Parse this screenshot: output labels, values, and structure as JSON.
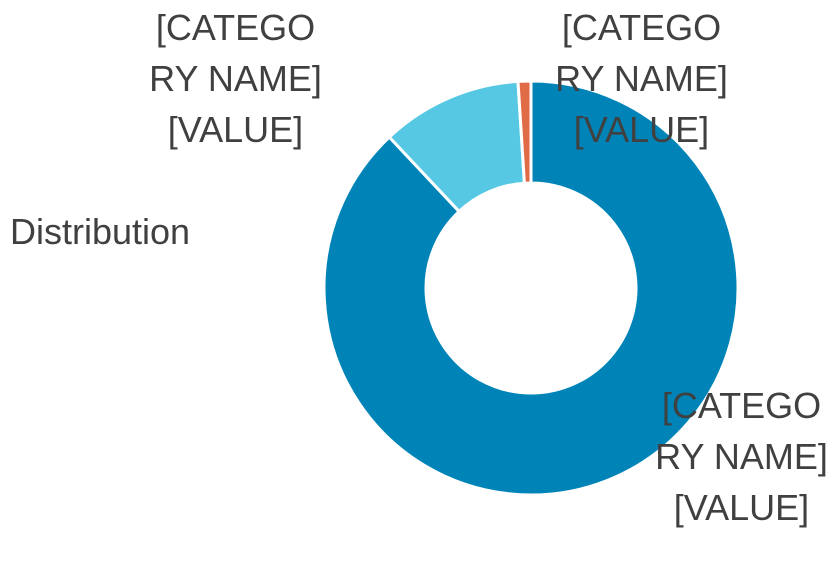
{
  "chart_data": {
    "type": "donut",
    "title": "Distribution",
    "categories": [
      "[CATEGORY NAME]",
      "[CATEGORY NAME]",
      "[CATEGORY NAME]"
    ],
    "values": [
      88,
      11,
      1
    ],
    "value_labels": [
      "[VALUE]",
      "[VALUE]",
      "[VALUE]"
    ],
    "colors": [
      "#0084b8",
      "#56c8e3",
      "#e06c47"
    ]
  }
}
